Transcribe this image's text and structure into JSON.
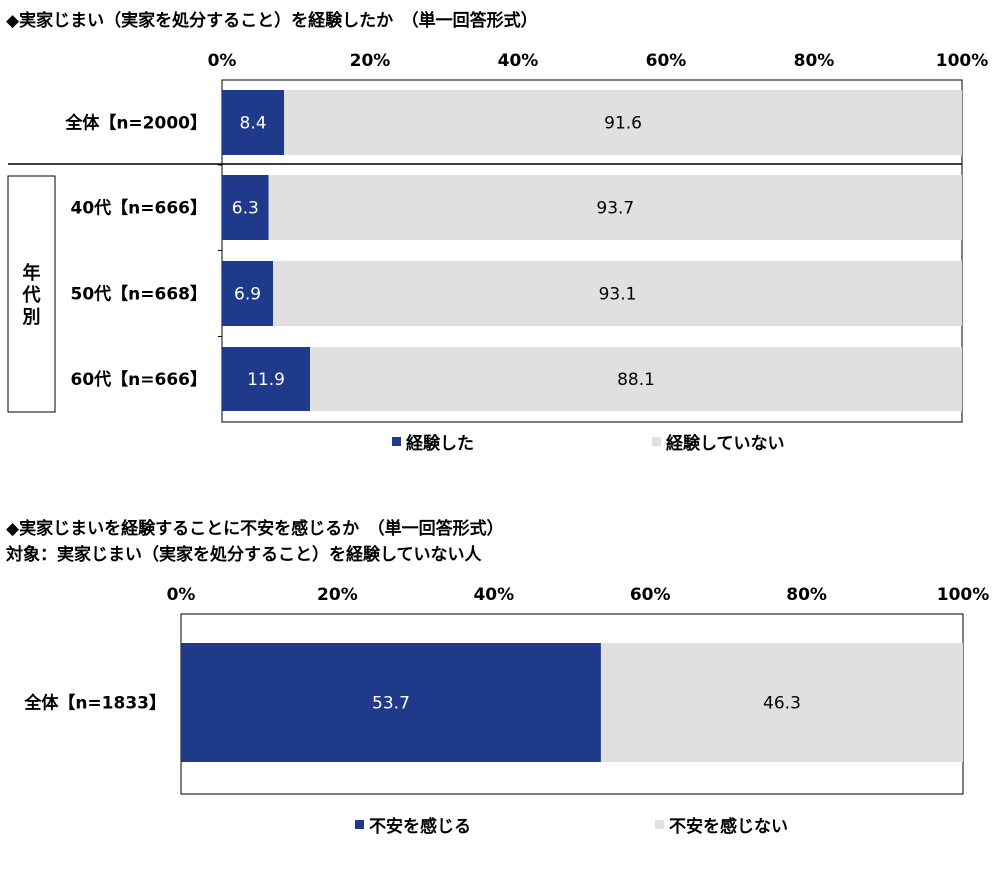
{
  "chart_data": [
    {
      "type": "bar",
      "orientation": "horizontal",
      "stacked": true,
      "title": "◆実家じまい（実家を処分すること）を経験したか　（単一回答形式）",
      "xlim": [
        0,
        100
      ],
      "xticks": [
        "0%",
        "20%",
        "40%",
        "60%",
        "80%",
        "100%"
      ],
      "group_label": "年代別",
      "categories": [
        "全体【n=2000】",
        "40代【n=666】",
        "50代【n=668】",
        "60代【n=666】"
      ],
      "series": [
        {
          "name": "経験した",
          "values": [
            8.4,
            6.3,
            6.9,
            11.9
          ],
          "color": "#1f3a8a"
        },
        {
          "name": "経験していない",
          "values": [
            91.6,
            93.7,
            93.1,
            88.1
          ],
          "color": "#e0e0e0"
        }
      ],
      "legend": "bottom"
    },
    {
      "type": "bar",
      "orientation": "horizontal",
      "stacked": true,
      "title": "◆実家じまいを経験することに不安を感じるか　（単一回答形式）",
      "subtitle": "対象：実家じまい（実家を処分すること）を経験していない人",
      "xlim": [
        0,
        100
      ],
      "xticks": [
        "0%",
        "20%",
        "40%",
        "60%",
        "80%",
        "100%"
      ],
      "categories": [
        "全体【n=1833】"
      ],
      "series": [
        {
          "name": "不安を感じる",
          "values": [
            53.7
          ],
          "color": "#1f3a8a"
        },
        {
          "name": "不安を感じない",
          "values": [
            46.3
          ],
          "color": "#e0e0e0"
        }
      ],
      "legend": "bottom"
    }
  ]
}
